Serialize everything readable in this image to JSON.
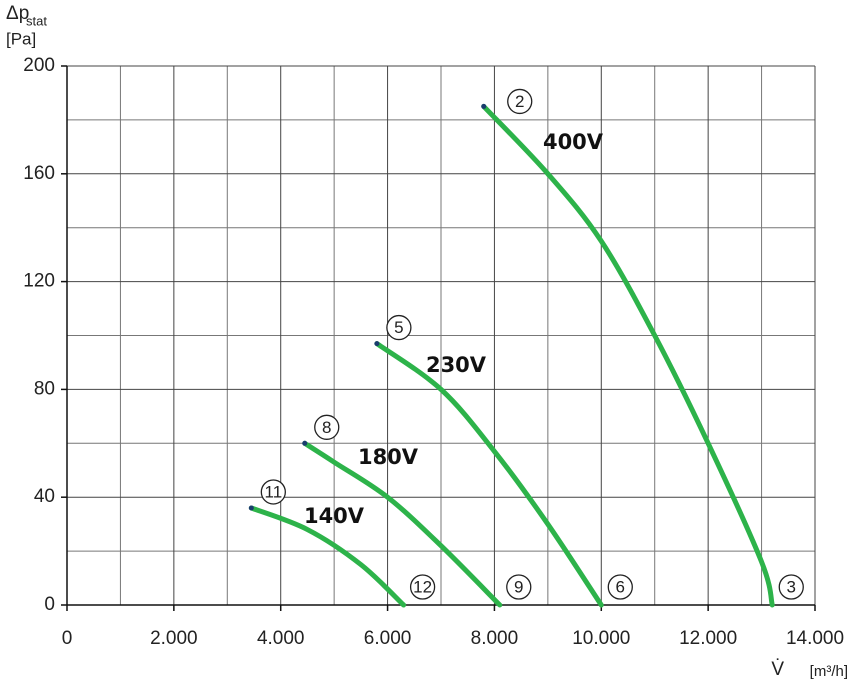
{
  "chart_data": {
    "type": "line",
    "y_label": "Δp",
    "y_label_sub": "stat",
    "y_unit": "[Pa]",
    "x_label": "V̇",
    "x_unit": "[m³/h]",
    "xlim": [
      0,
      14000
    ],
    "xticks": [
      0,
      {
        "value": 2000,
        "label": "2.000"
      },
      {
        "value": 4000,
        "label": "4.000"
      },
      {
        "value": 6000,
        "label": "6.000"
      },
      {
        "value": 8000,
        "label": "8.000"
      },
      {
        "value": 10000,
        "label": "10.000"
      },
      {
        "value": 12000,
        "label": "12.000"
      },
      {
        "value": 14000,
        "label": "14.000"
      }
    ],
    "xminor": [
      1000,
      3000,
      5000,
      7000,
      9000,
      11000,
      13000
    ],
    "ylim": [
      0,
      200
    ],
    "yticks": [
      0,
      40,
      80,
      120,
      160,
      200
    ],
    "yminor": [
      20,
      60,
      100,
      140,
      180
    ],
    "grid": true,
    "series": [
      {
        "name": "400V",
        "color": "#2db34a",
        "start_label": "2",
        "end_label": "3",
        "x": [
          7800,
          9000,
          10000,
          11000,
          12000,
          13000,
          13200
        ],
        "values": [
          185,
          160,
          135,
          100,
          60,
          16,
          0
        ]
      },
      {
        "name": "230V",
        "color": "#2db34a",
        "start_label": "5",
        "end_label": "6",
        "x": [
          5800,
          7000,
          8000,
          9000,
          10000
        ],
        "values": [
          97,
          80,
          57,
          30,
          0
        ]
      },
      {
        "name": "180V",
        "color": "#2db34a",
        "start_label": "8",
        "end_label": "9",
        "x": [
          4450,
          5000,
          6000,
          7000,
          8100
        ],
        "values": [
          60,
          53,
          40,
          22,
          0
        ]
      },
      {
        "name": "140V",
        "color": "#2db34a",
        "start_label": "11",
        "end_label": "12",
        "x": [
          3450,
          4500,
          5500,
          6300
        ],
        "values": [
          36,
          28,
          15,
          0
        ]
      }
    ]
  }
}
